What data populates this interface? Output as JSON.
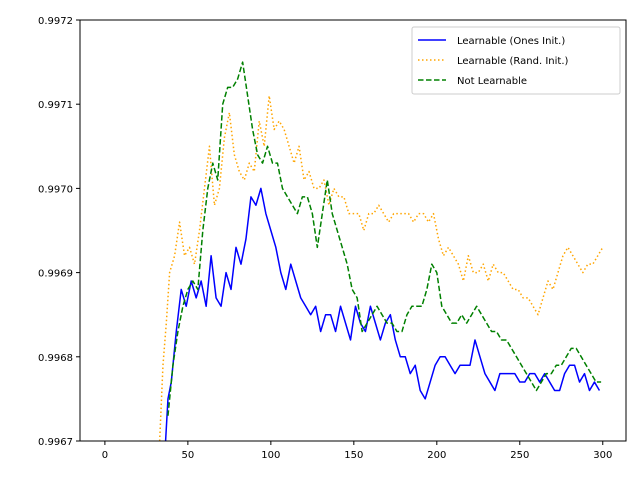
{
  "chart_data": {
    "type": "line",
    "title": "",
    "xlabel": "",
    "ylabel": "",
    "xlim": [
      -15,
      314
    ],
    "ylim": [
      0.9967,
      0.9972
    ],
    "xticks": [
      0,
      50,
      100,
      150,
      200,
      250,
      300
    ],
    "xtick_labels": [
      "0",
      "50",
      "100",
      "150",
      "200",
      "250",
      "300"
    ],
    "yticks": [
      0.9967,
      0.9968,
      0.9969,
      0.997,
      0.9971,
      0.9972
    ],
    "ytick_labels": [
      "0.9967",
      "0.9968",
      "0.9969",
      "0.9970",
      "0.9971",
      "0.9972"
    ],
    "grid": false,
    "legend_position": "top-right",
    "series": [
      {
        "name": "Learnable (Ones Init.)",
        "color": "#0000ff",
        "style": "solid",
        "x": [
          36,
          38,
          40,
          43,
          46,
          49,
          52,
          55,
          58,
          61,
          64,
          67,
          70,
          73,
          76,
          79,
          82,
          85,
          88,
          91,
          94,
          97,
          100,
          103,
          106,
          109,
          112,
          115,
          118,
          121,
          124,
          127,
          130,
          133,
          136,
          139,
          142,
          145,
          148,
          151,
          154,
          157,
          160,
          163,
          166,
          169,
          172,
          175,
          178,
          181,
          184,
          187,
          190,
          193,
          196,
          199,
          202,
          205,
          208,
          211,
          214,
          217,
          220,
          223,
          226,
          229,
          232,
          235,
          238,
          241,
          244,
          247,
          250,
          253,
          256,
          259,
          262,
          265,
          268,
          271,
          274,
          277,
          280,
          283,
          286,
          289,
          292,
          295,
          298
        ],
        "y": [
          0.99668,
          0.99675,
          0.99677,
          0.99683,
          0.99688,
          0.99686,
          0.99689,
          0.99687,
          0.99689,
          0.99686,
          0.99692,
          0.99687,
          0.99686,
          0.9969,
          0.99688,
          0.99693,
          0.99691,
          0.99694,
          0.99699,
          0.99698,
          0.997,
          0.99697,
          0.99695,
          0.99693,
          0.9969,
          0.99688,
          0.99691,
          0.99689,
          0.99687,
          0.99686,
          0.99685,
          0.99686,
          0.99683,
          0.99685,
          0.99685,
          0.99683,
          0.99686,
          0.99684,
          0.99682,
          0.99686,
          0.99684,
          0.99683,
          0.99686,
          0.99684,
          0.99682,
          0.99684,
          0.99685,
          0.99682,
          0.9968,
          0.9968,
          0.99678,
          0.99679,
          0.99676,
          0.99675,
          0.99677,
          0.99679,
          0.9968,
          0.9968,
          0.99679,
          0.99678,
          0.99679,
          0.99679,
          0.99679,
          0.99682,
          0.9968,
          0.99678,
          0.99677,
          0.99676,
          0.99678,
          0.99678,
          0.99678,
          0.99678,
          0.99677,
          0.99677,
          0.99678,
          0.99678,
          0.99677,
          0.99678,
          0.99677,
          0.99676,
          0.99676,
          0.99678,
          0.99679,
          0.99679,
          0.99677,
          0.99678,
          0.99676,
          0.99677,
          0.99676
        ]
      },
      {
        "name": "Learnable (Rand. Init.)",
        "color": "#ffa500",
        "style": "dotted",
        "x": [
          33,
          35,
          37,
          39,
          42,
          45,
          48,
          51,
          54,
          57,
          60,
          63,
          66,
          69,
          72,
          75,
          78,
          81,
          84,
          87,
          90,
          93,
          96,
          99,
          102,
          105,
          108,
          111,
          114,
          117,
          120,
          123,
          126,
          129,
          132,
          135,
          138,
          141,
          144,
          147,
          150,
          153,
          156,
          159,
          162,
          165,
          168,
          171,
          174,
          177,
          180,
          183,
          186,
          189,
          192,
          195,
          198,
          201,
          204,
          207,
          210,
          213,
          216,
          219,
          222,
          225,
          228,
          231,
          234,
          237,
          240,
          243,
          246,
          249,
          252,
          255,
          258,
          261,
          264,
          267,
          270,
          273,
          276,
          279,
          282,
          285,
          288,
          291,
          294,
          297,
          300
        ],
        "y": [
          0.9967,
          0.99679,
          0.99684,
          0.9969,
          0.99692,
          0.99696,
          0.99692,
          0.99693,
          0.99691,
          0.99695,
          0.997,
          0.99705,
          0.99698,
          0.997,
          0.99706,
          0.99709,
          0.99704,
          0.99702,
          0.99701,
          0.99703,
          0.99702,
          0.99708,
          0.99705,
          0.99711,
          0.99707,
          0.99708,
          0.99707,
          0.99705,
          0.99703,
          0.99705,
          0.99701,
          0.99702,
          0.997,
          0.997,
          0.99701,
          0.99698,
          0.997,
          0.99699,
          0.99699,
          0.99697,
          0.99697,
          0.99697,
          0.99695,
          0.99697,
          0.99697,
          0.99698,
          0.99697,
          0.99696,
          0.99697,
          0.99697,
          0.99697,
          0.99697,
          0.99696,
          0.99697,
          0.99697,
          0.99696,
          0.99697,
          0.99694,
          0.99692,
          0.99693,
          0.99692,
          0.99691,
          0.99689,
          0.99692,
          0.9969,
          0.9969,
          0.99691,
          0.99689,
          0.99691,
          0.9969,
          0.9969,
          0.99689,
          0.99688,
          0.99688,
          0.99687,
          0.99687,
          0.99686,
          0.99685,
          0.99687,
          0.99689,
          0.99688,
          0.9969,
          0.99692,
          0.99693,
          0.99692,
          0.99691,
          0.9969,
          0.99691,
          0.99691,
          0.99692,
          0.99693
        ]
      },
      {
        "name": "Not Learnable",
        "color": "#008000",
        "style": "dashed",
        "x": [
          38,
          41,
          44,
          47,
          50,
          53,
          56,
          59,
          62,
          65,
          68,
          71,
          74,
          77,
          80,
          83,
          86,
          89,
          92,
          95,
          98,
          101,
          104,
          107,
          110,
          113,
          116,
          119,
          122,
          125,
          128,
          131,
          134,
          137,
          140,
          143,
          146,
          149,
          152,
          155,
          158,
          161,
          164,
          167,
          170,
          173,
          176,
          179,
          182,
          185,
          188,
          191,
          194,
          197,
          200,
          203,
          206,
          209,
          212,
          215,
          218,
          221,
          224,
          227,
          230,
          233,
          236,
          239,
          242,
          245,
          248,
          251,
          254,
          257,
          260,
          263,
          266,
          269,
          272,
          275,
          278,
          281,
          284,
          287,
          290,
          293,
          296,
          299
        ],
        "y": [
          0.99673,
          0.99679,
          0.99683,
          0.99686,
          0.99688,
          0.99689,
          0.99688,
          0.99695,
          0.997,
          0.99703,
          0.99701,
          0.9971,
          0.99712,
          0.99712,
          0.99713,
          0.99715,
          0.99711,
          0.99707,
          0.99704,
          0.99703,
          0.99705,
          0.99703,
          0.99703,
          0.997,
          0.99699,
          0.99698,
          0.99697,
          0.99699,
          0.99699,
          0.99697,
          0.99693,
          0.99697,
          0.99701,
          0.99697,
          0.99695,
          0.99693,
          0.99691,
          0.99688,
          0.99687,
          0.99683,
          0.99684,
          0.99685,
          0.99686,
          0.99685,
          0.99684,
          0.99684,
          0.99683,
          0.99683,
          0.99685,
          0.99686,
          0.99686,
          0.99686,
          0.99688,
          0.99691,
          0.9969,
          0.99686,
          0.99685,
          0.99684,
          0.99684,
          0.99685,
          0.99684,
          0.99685,
          0.99686,
          0.99685,
          0.99684,
          0.99683,
          0.99683,
          0.99682,
          0.99682,
          0.99681,
          0.9968,
          0.99679,
          0.99678,
          0.99677,
          0.99676,
          0.99677,
          0.99678,
          0.99678,
          0.99679,
          0.99679,
          0.9968,
          0.99681,
          0.99681,
          0.9968,
          0.99679,
          0.99678,
          0.99677,
          0.99677
        ]
      }
    ]
  }
}
